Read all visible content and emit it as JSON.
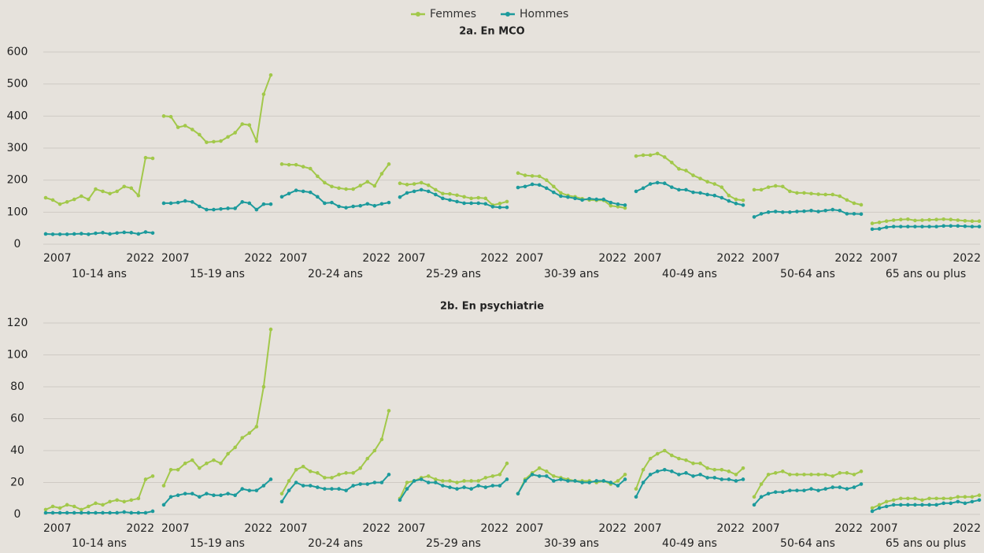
{
  "chart_data": [
    {
      "type": "line",
      "title": "2a. En MCO",
      "categories": [
        "10-14 ans",
        "15-19 ans",
        "20-24 ans",
        "25-29 ans",
        "30-39 ans",
        "40-49 ans",
        "50-64 ans",
        "65 ans ou plus"
      ],
      "xlim": [
        2007,
        2022
      ],
      "xticks": [
        2007,
        2022
      ],
      "ylim": [
        0,
        600
      ],
      "yticks": [
        0,
        100,
        200,
        300,
        400,
        500,
        600
      ],
      "grid": true,
      "series": [
        {
          "name": "Femmes",
          "color": "#a2c84a",
          "values": [
            [
              145,
              138,
              125,
              132,
              140,
              150,
              140,
              172,
              165,
              158,
              165,
              180,
              175,
              152,
              270,
              268
            ],
            [
              400,
              398,
              365,
              370,
              358,
              342,
              318,
              320,
              322,
              335,
              348,
              375,
              372,
              322,
              468,
              528
            ],
            [
              250,
              248,
              248,
              242,
              236,
              212,
              192,
              180,
              175,
              172,
              172,
              183,
              195,
              182,
              220,
              250
            ],
            [
              190,
              186,
              188,
              192,
              184,
              170,
              158,
              157,
              153,
              148,
              143,
              145,
              143,
              122,
              127,
              133
            ],
            [
              222,
              215,
              213,
              212,
              200,
              180,
              160,
              152,
              148,
              142,
              138,
              137,
              137,
              120,
              117,
              113
            ],
            [
              275,
              278,
              278,
              283,
              272,
              255,
              235,
              230,
              215,
              205,
              195,
              188,
              178,
              152,
              140,
              137
            ],
            [
              170,
              170,
              178,
              182,
              180,
              165,
              160,
              160,
              158,
              156,
              155,
              155,
              150,
              138,
              128,
              123
            ],
            [
              65,
              68,
              72,
              75,
              77,
              78,
              74,
              75,
              76,
              77,
              78,
              77,
              75,
              73,
              72,
              72
            ]
          ]
        },
        {
          "name": "Hommes",
          "color": "#1c9a9c",
          "values": [
            [
              32,
              31,
              31,
              31,
              32,
              33,
              31,
              34,
              36,
              32,
              35,
              37,
              36,
              32,
              38,
              35
            ],
            [
              128,
              128,
              130,
              135,
              132,
              118,
              108,
              108,
              110,
              112,
              112,
              132,
              128,
              108,
              125,
              125
            ],
            [
              148,
              158,
              168,
              165,
              162,
              148,
              128,
              130,
              118,
              114,
              118,
              120,
              126,
              120,
              126,
              130
            ],
            [
              147,
              160,
              165,
              170,
              165,
              155,
              143,
              138,
              133,
              128,
              128,
              128,
              126,
              117,
              115,
              115
            ],
            [
              177,
              180,
              187,
              185,
              175,
              162,
              150,
              147,
              143,
              138,
              142,
              140,
              140,
              130,
              125,
              122
            ],
            [
              165,
              175,
              188,
              192,
              190,
              178,
              170,
              170,
              162,
              160,
              155,
              152,
              145,
              135,
              127,
              122
            ],
            [
              85,
              95,
              100,
              102,
              100,
              100,
              102,
              103,
              105,
              102,
              105,
              108,
              105,
              95,
              95,
              94
            ],
            [
              47,
              48,
              53,
              55,
              55,
              55,
              55,
              55,
              55,
              55,
              57,
              57,
              57,
              56,
              55,
              55
            ]
          ]
        }
      ]
    },
    {
      "type": "line",
      "title": "2b. En psychiatrie",
      "categories": [
        "10-14 ans",
        "15-19 ans",
        "20-24 ans",
        "25-29 ans",
        "30-39 ans",
        "40-49 ans",
        "50-64 ans",
        "65 ans ou plus"
      ],
      "xlim": [
        2007,
        2022
      ],
      "xticks": [
        2007,
        2022
      ],
      "ylim": [
        0,
        120
      ],
      "yticks": [
        0,
        20,
        40,
        60,
        80,
        100,
        120
      ],
      "grid": true,
      "series": [
        {
          "name": "Femmes",
          "color": "#a2c84a",
          "values": [
            [
              3,
              5,
              4,
              6,
              5,
              3,
              5,
              7,
              6,
              8,
              9,
              8,
              9,
              10,
              22,
              24
            ],
            [
              18,
              28,
              28,
              32,
              34,
              29,
              32,
              34,
              32,
              38,
              42,
              48,
              51,
              55,
              80,
              116
            ],
            [
              13,
              21,
              28,
              30,
              27,
              26,
              23,
              23,
              25,
              26,
              26,
              29,
              35,
              40,
              47,
              65
            ],
            [
              10,
              20,
              21,
              23,
              24,
              22,
              21,
              21,
              20,
              21,
              21,
              21,
              23,
              24,
              25,
              32
            ],
            [
              13,
              22,
              26,
              29,
              27,
              24,
              23,
              22,
              21,
              21,
              21,
              20,
              21,
              19,
              21,
              25
            ],
            [
              16,
              28,
              35,
              38,
              40,
              37,
              35,
              34,
              32,
              32,
              29,
              28,
              28,
              27,
              25,
              29
            ],
            [
              11,
              19,
              25,
              26,
              27,
              25,
              25,
              25,
              25,
              25,
              25,
              24,
              26,
              26,
              25,
              27
            ],
            [
              4,
              6,
              8,
              9,
              10,
              10,
              10,
              9,
              10,
              10,
              10,
              10,
              11,
              11,
              11,
              12
            ]
          ]
        },
        {
          "name": "Hommes",
          "color": "#1c9a9c",
          "values": [
            [
              1,
              1,
              1,
              1,
              1,
              1,
              1,
              1,
              1,
              1,
              1,
              1.5,
              1,
              1,
              1,
              2
            ],
            [
              6,
              11,
              12,
              13,
              13,
              11,
              13,
              12,
              12,
              13,
              12,
              16,
              15,
              15,
              18,
              22
            ],
            [
              8,
              15,
              20,
              18,
              18,
              17,
              16,
              16,
              16,
              15,
              18,
              19,
              19,
              20,
              20,
              25
            ],
            [
              9,
              16,
              21,
              22,
              20,
              20,
              18,
              17,
              16,
              17,
              16,
              18,
              17,
              18,
              18,
              22
            ],
            [
              13,
              21,
              25,
              24,
              24,
              21,
              22,
              21,
              21,
              20,
              20,
              21,
              21,
              20,
              18,
              22
            ],
            [
              11,
              20,
              25,
              27,
              28,
              27,
              25,
              26,
              24,
              25,
              23,
              23,
              22,
              22,
              21,
              22
            ],
            [
              6,
              11,
              13,
              14,
              14,
              15,
              15,
              15,
              16,
              15,
              16,
              17,
              17,
              16,
              17,
              19
            ],
            [
              2,
              4,
              5,
              6,
              6,
              6,
              6,
              6,
              6,
              6,
              7,
              7,
              8,
              7,
              8,
              9
            ]
          ]
        }
      ]
    }
  ]
}
